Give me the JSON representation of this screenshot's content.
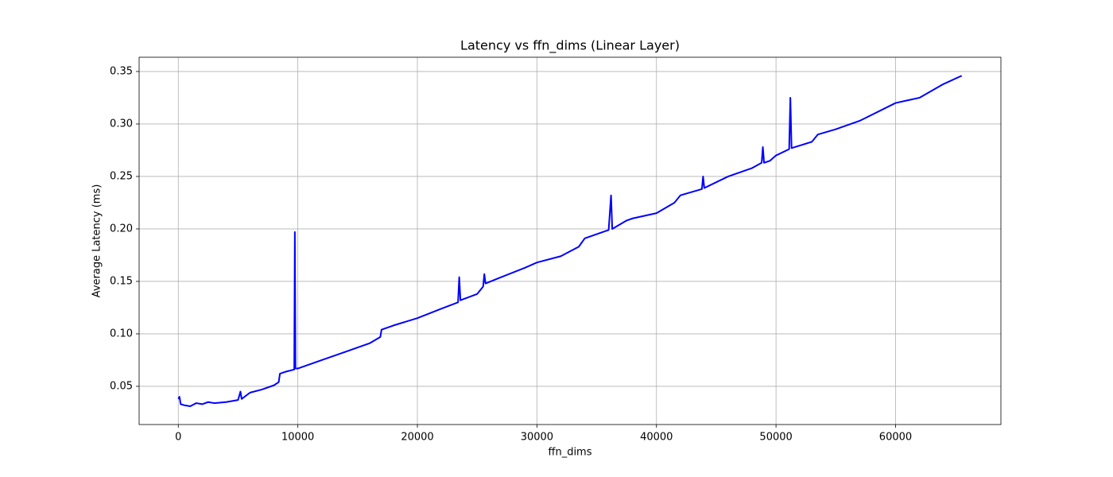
{
  "chart_data": {
    "type": "line",
    "title": "Latency vs ffn_dims (Linear Layer)",
    "x_label": "ffn_dims",
    "y_label": "Average Latency (ms)",
    "color": "#0000ff",
    "grid": true,
    "xlim": [
      -3277,
      68813
    ],
    "ylim": [
      0.0136,
      0.3636
    ],
    "xticks": [
      0,
      10000,
      20000,
      30000,
      40000,
      50000,
      60000
    ],
    "yticks": [
      0.05,
      {
        "value": 0.1,
        "label": "0.10"
      },
      0.15,
      {
        "value": 0.2,
        "label": "0.20"
      },
      0.25,
      {
        "value": 0.3,
        "label": "0.30"
      },
      0.35
    ],
    "x": [
      0,
      100,
      200,
      500,
      1000,
      1500,
      2000,
      2500,
      3000,
      4000,
      5000,
      5200,
      5300,
      6000,
      7000,
      8000,
      8400,
      8500,
      9000,
      9700,
      9750,
      9800,
      10000,
      12000,
      14000,
      16000,
      16900,
      17000,
      18000,
      20000,
      22000,
      23400,
      23500,
      23600,
      25000,
      25500,
      25600,
      25700,
      27000,
      29000,
      30000,
      32000,
      33500,
      34000,
      36000,
      36200,
      36300,
      37500,
      38000,
      40000,
      41500,
      42000,
      43800,
      43900,
      44000,
      46000,
      48000,
      48800,
      48900,
      49000,
      49500,
      50000,
      51100,
      51200,
      51300,
      53000,
      53500,
      55000,
      57000,
      60000,
      62000,
      64000,
      65536
    ],
    "values": [
      0.038,
      0.04,
      0.033,
      0.032,
      0.031,
      0.034,
      0.033,
      0.035,
      0.034,
      0.035,
      0.037,
      0.045,
      0.038,
      0.044,
      0.047,
      0.051,
      0.054,
      0.062,
      0.064,
      0.066,
      0.197,
      0.067,
      0.067,
      0.075,
      0.083,
      0.091,
      0.097,
      0.104,
      0.108,
      0.115,
      0.124,
      0.13,
      0.154,
      0.132,
      0.138,
      0.145,
      0.157,
      0.148,
      0.154,
      0.163,
      0.168,
      0.174,
      0.183,
      0.191,
      0.199,
      0.232,
      0.2,
      0.208,
      0.21,
      0.215,
      0.225,
      0.232,
      0.238,
      0.25,
      0.239,
      0.25,
      0.258,
      0.263,
      0.278,
      0.263,
      0.265,
      0.27,
      0.276,
      0.325,
      0.277,
      0.283,
      0.29,
      0.295,
      0.303,
      0.32,
      0.325,
      0.338,
      0.346
    ]
  }
}
